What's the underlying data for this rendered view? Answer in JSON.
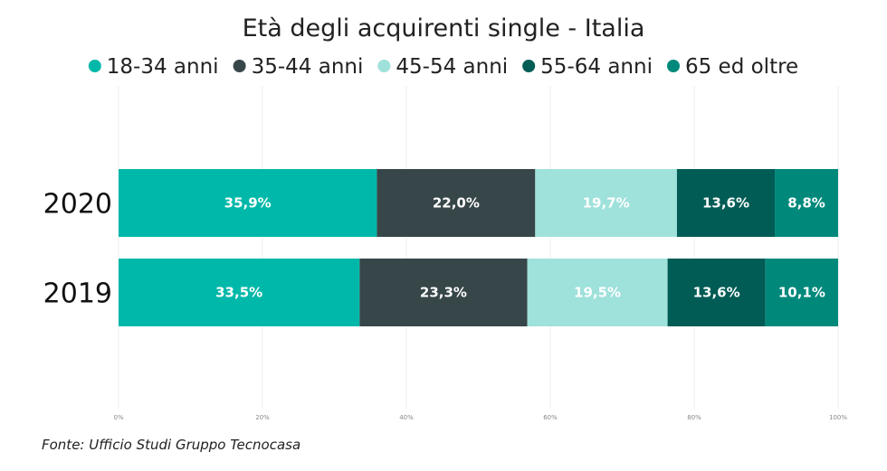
{
  "chart_data": {
    "type": "bar",
    "orientation": "horizontal",
    "stacked": true,
    "title": "Età degli acquirenti single - Italia",
    "categories": [
      "2020",
      "2019"
    ],
    "series": [
      {
        "name": "18-34 anni",
        "color": "#00b8a9",
        "values": [
          35.9,
          33.5
        ],
        "labels": [
          "35,9%",
          "33,5%"
        ]
      },
      {
        "name": "35-44 anni",
        "color": "#374649",
        "values": [
          22.0,
          23.3
        ],
        "labels": [
          "22,0%",
          "23,3%"
        ]
      },
      {
        "name": "45-54 anni",
        "color": "#9fe1db",
        "values": [
          19.7,
          19.5
        ],
        "labels": [
          "19,7%",
          "19,5%"
        ]
      },
      {
        "name": "55-64 anni",
        "color": "#005c55",
        "values": [
          13.6,
          13.6
        ],
        "labels": [
          "13,6%",
          "13,6%"
        ]
      },
      {
        "name": "65 ed oltre",
        "color": "#00897b",
        "values": [
          8.8,
          10.1
        ],
        "labels": [
          "8,8%",
          "10,1%"
        ]
      }
    ],
    "xlim": [
      0,
      100
    ],
    "xticks": [
      0,
      20,
      40,
      60,
      80,
      100
    ],
    "xtick_labels": [
      "0%",
      "20%",
      "40%",
      "60%",
      "80%",
      "100%"
    ],
    "grid": true,
    "legend_position": "top"
  },
  "source": "Fonte: Ufficio Studi Gruppo Tecnocasa"
}
